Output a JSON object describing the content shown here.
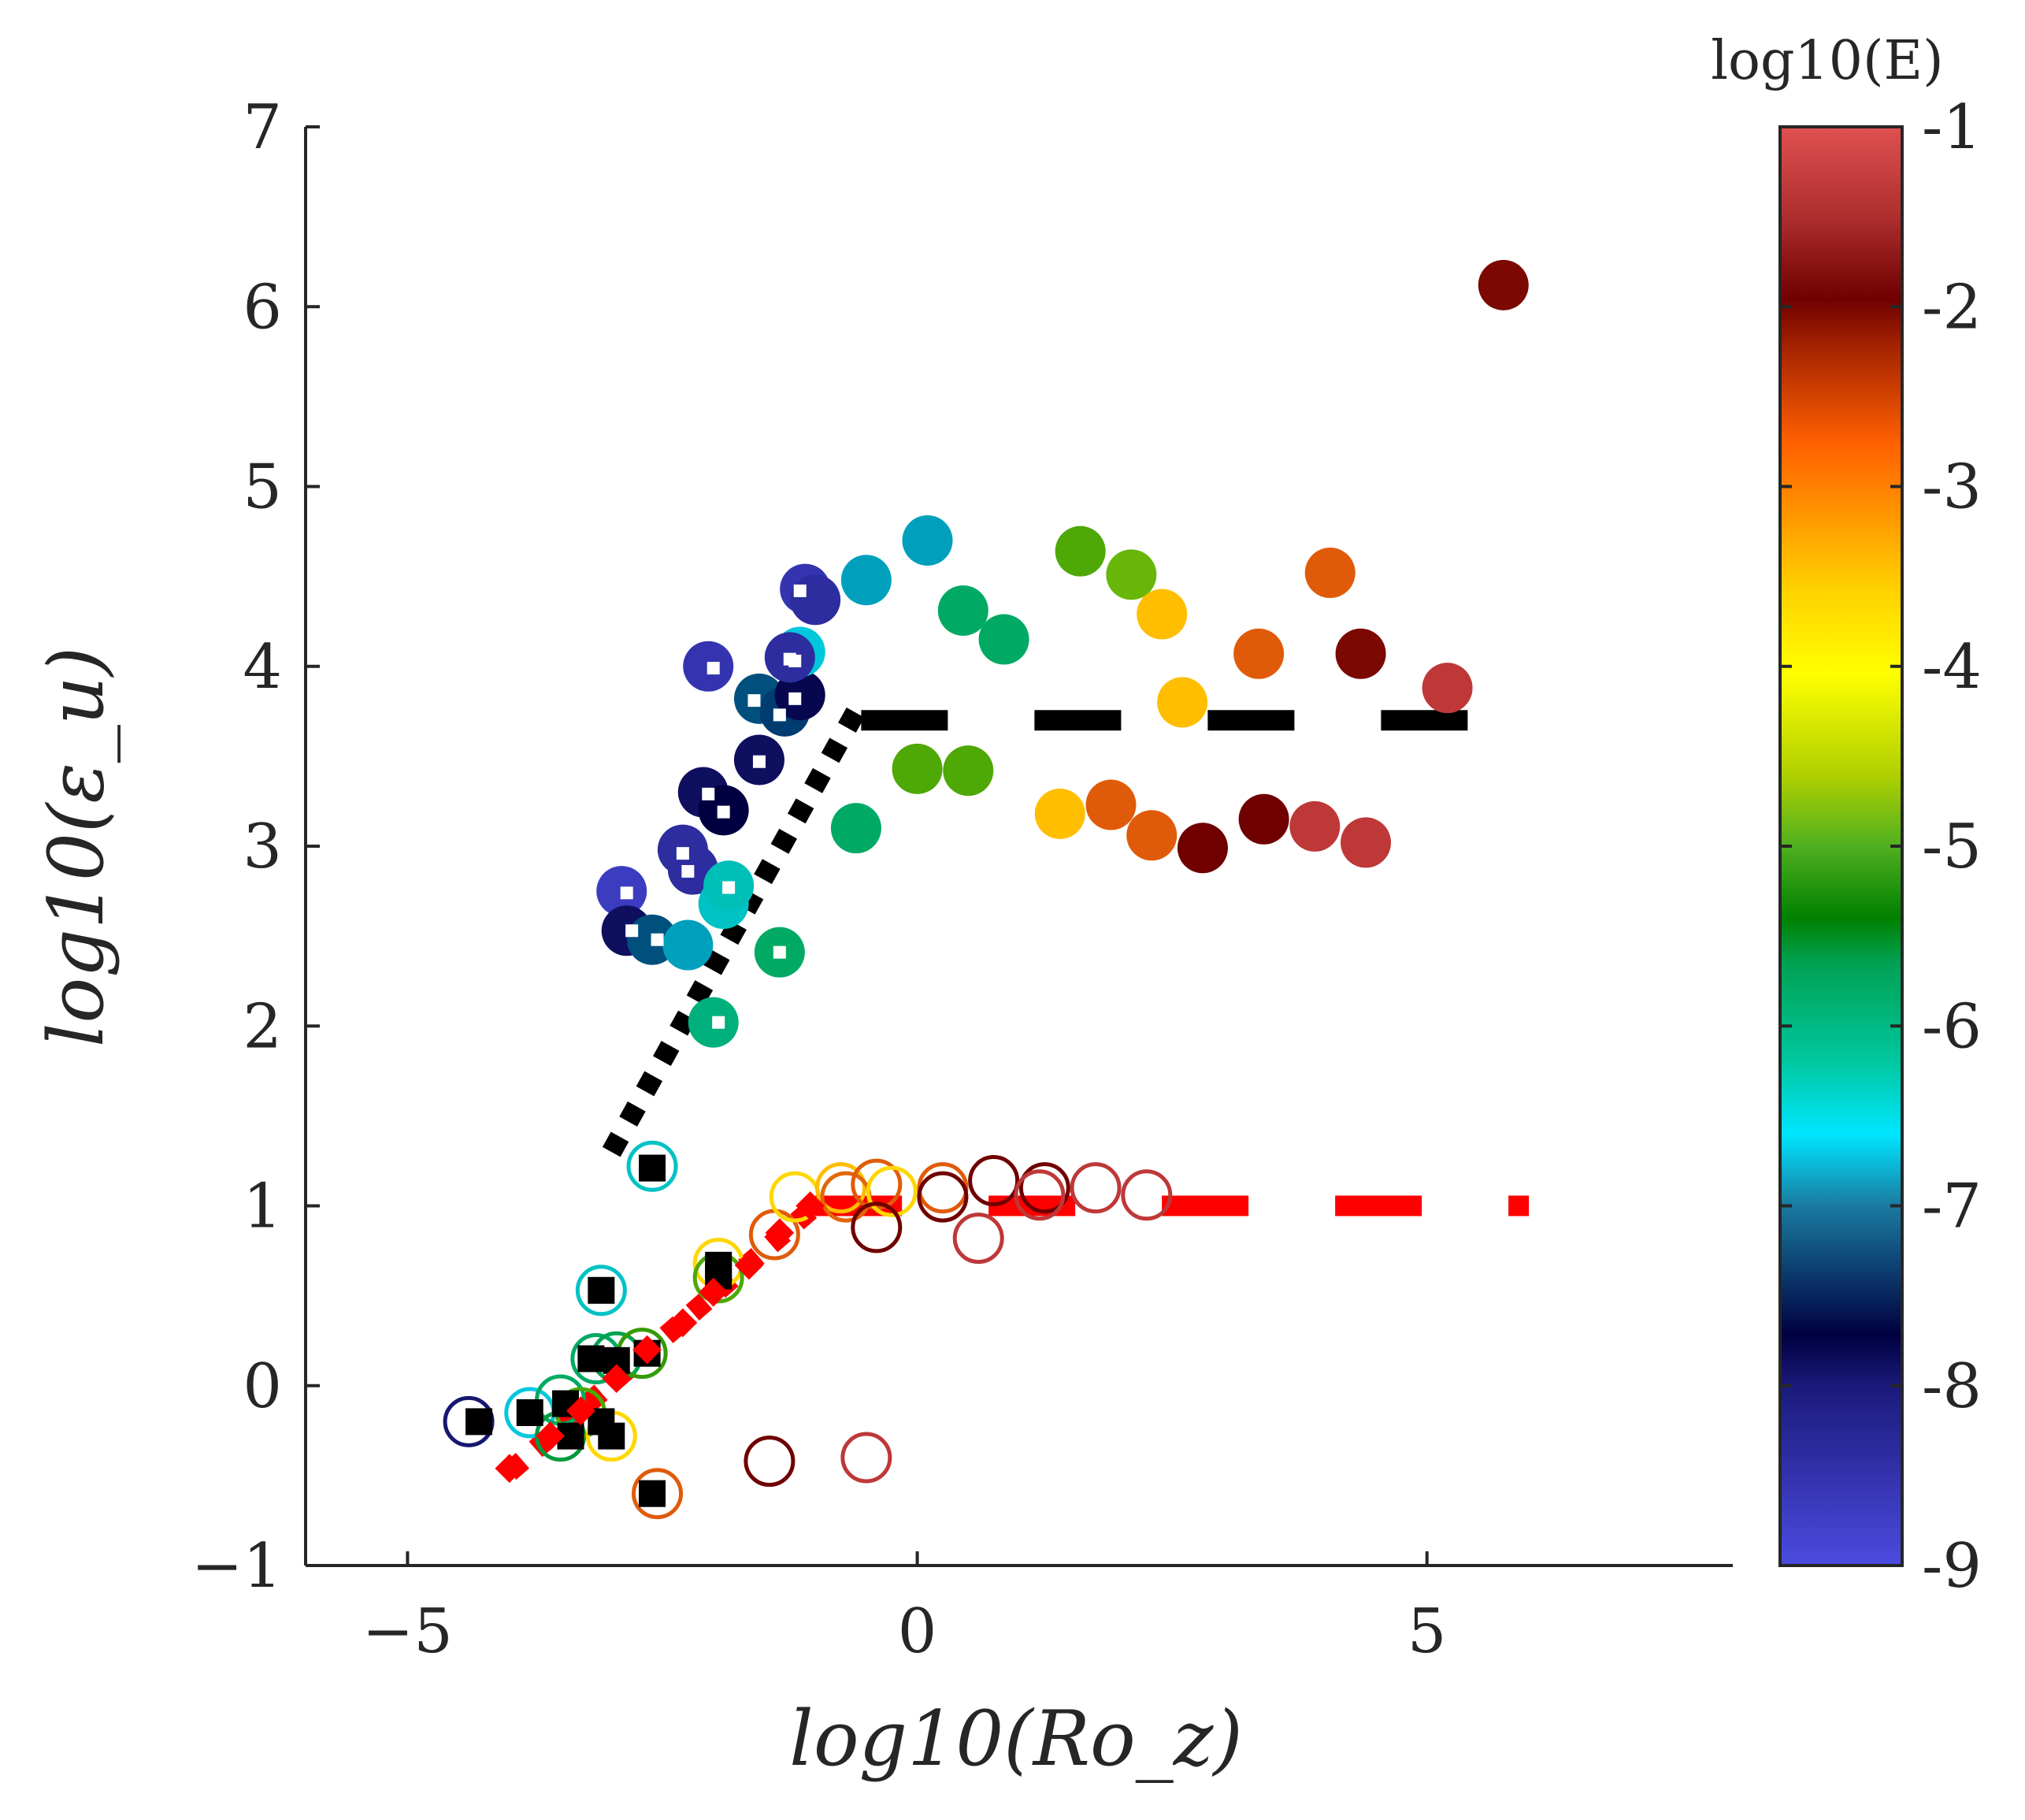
{
  "chart_data": {
    "type": "scatter",
    "xlabel": "log10(Ro_z)",
    "ylabel": "log10(ε_u)",
    "xlim": [
      -6,
      8
    ],
    "ylim": [
      -1,
      7
    ],
    "xticks": [
      -5,
      0,
      5
    ],
    "yticks": [
      -1,
      0,
      1,
      2,
      3,
      4,
      5,
      6,
      7
    ],
    "grid": false,
    "colorbar": {
      "title": "log10(E)",
      "range": [
        -9,
        -1
      ],
      "ticks": [
        "-1",
        "-2",
        "-3",
        "-4",
        "-5",
        "-6",
        "-7",
        "-8",
        "-9"
      ]
    },
    "series": [
      {
        "name": "filled circles (epsilon_u, upper branch)",
        "marker": "filled-circle",
        "points": [
          {
            "x": -2.9,
            "y": 2.75,
            "e": -8.8
          },
          {
            "x": -2.85,
            "y": 2.53,
            "e": -8.2
          },
          {
            "x": -2.6,
            "y": 2.48,
            "e": -7.6
          },
          {
            "x": -2.25,
            "y": 2.45,
            "e": -7.2
          },
          {
            "x": -2.3,
            "y": 2.98,
            "e": -8.6
          },
          {
            "x": -2.2,
            "y": 2.87,
            "e": -8.6
          },
          {
            "x": -2.0,
            "y": 2.02,
            "e": -6.2
          },
          {
            "x": -1.9,
            "y": 2.68,
            "e": -6.8
          },
          {
            "x": -1.85,
            "y": 2.78,
            "e": -6.7
          },
          {
            "x": -2.1,
            "y": 3.3,
            "e": -8.2
          },
          {
            "x": -1.9,
            "y": 3.2,
            "e": -8.0
          },
          {
            "x": -2.05,
            "y": 4.0,
            "e": -8.7
          },
          {
            "x": -1.55,
            "y": 3.82,
            "e": -7.6
          },
          {
            "x": -1.3,
            "y": 3.75,
            "e": -7.7
          },
          {
            "x": -1.55,
            "y": 3.48,
            "e": -8.2
          },
          {
            "x": -1.15,
            "y": 3.84,
            "e": -8.1
          },
          {
            "x": -1.35,
            "y": 2.41,
            "e": -6.0
          },
          {
            "x": -1.15,
            "y": 4.08,
            "e": -7.0
          },
          {
            "x": -1.25,
            "y": 4.05,
            "e": -8.6
          },
          {
            "x": -1.1,
            "y": 4.43,
            "e": -8.7
          },
          {
            "x": -1.0,
            "y": 4.37,
            "e": -8.6
          },
          {
            "x": -0.5,
            "y": 4.48,
            "e": -7.2
          },
          {
            "x": -0.6,
            "y": 3.1,
            "e": -6.0
          },
          {
            "x": 0.1,
            "y": 4.7,
            "e": -7.2
          },
          {
            "x": 0.45,
            "y": 4.31,
            "e": -6.0
          },
          {
            "x": 0.85,
            "y": 4.15,
            "e": -6.0
          },
          {
            "x": 0.0,
            "y": 3.43,
            "e": -5.2
          },
          {
            "x": 0.5,
            "y": 3.42,
            "e": -5.2
          },
          {
            "x": 1.6,
            "y": 4.64,
            "e": -5.2
          },
          {
            "x": 2.1,
            "y": 4.51,
            "e": -5.1
          },
          {
            "x": 2.4,
            "y": 4.29,
            "e": -4.0
          },
          {
            "x": 2.6,
            "y": 3.8,
            "e": -4.0
          },
          {
            "x": 1.4,
            "y": 3.18,
            "e": -4.0
          },
          {
            "x": 1.9,
            "y": 3.23,
            "e": -3.1
          },
          {
            "x": 2.3,
            "y": 3.06,
            "e": -3.1
          },
          {
            "x": 2.8,
            "y": 2.99,
            "e": -2.0
          },
          {
            "x": 3.35,
            "y": 4.07,
            "e": -3.1
          },
          {
            "x": 3.4,
            "y": 3.15,
            "e": -2.0
          },
          {
            "x": 3.9,
            "y": 3.11,
            "e": -1.3
          },
          {
            "x": 4.05,
            "y": 4.52,
            "e": -3.1
          },
          {
            "x": 4.35,
            "y": 4.07,
            "e": -2.1
          },
          {
            "x": 4.4,
            "y": 3.02,
            "e": -1.3
          },
          {
            "x": 5.2,
            "y": 3.88,
            "e": -1.3
          },
          {
            "x": 5.75,
            "y": 6.12,
            "e": -2.1
          }
        ]
      },
      {
        "name": "white squares (inside filled circles)",
        "marker": "white-square",
        "points": [
          {
            "x": -2.85,
            "y": 2.74
          },
          {
            "x": -2.8,
            "y": 2.53
          },
          {
            "x": -2.55,
            "y": 2.48
          },
          {
            "x": -2.3,
            "y": 2.96
          },
          {
            "x": -2.25,
            "y": 2.86
          },
          {
            "x": -1.95,
            "y": 2.02
          },
          {
            "x": -1.85,
            "y": 2.77
          },
          {
            "x": -2.05,
            "y": 3.29
          },
          {
            "x": -1.9,
            "y": 3.19
          },
          {
            "x": -2.0,
            "y": 3.99
          },
          {
            "x": -1.6,
            "y": 3.81
          },
          {
            "x": -1.35,
            "y": 3.73
          },
          {
            "x": -1.55,
            "y": 3.47
          },
          {
            "x": -1.2,
            "y": 3.82
          },
          {
            "x": -1.35,
            "y": 2.41
          },
          {
            "x": -1.25,
            "y": 4.04
          },
          {
            "x": -1.2,
            "y": 4.03
          },
          {
            "x": -1.15,
            "y": 4.42
          }
        ]
      },
      {
        "name": "open circles (lower branch)",
        "marker": "open-circle",
        "points": [
          {
            "x": -4.4,
            "y": -0.2,
            "e": -8.3
          },
          {
            "x": -3.8,
            "y": -0.15,
            "e": -7.0
          },
          {
            "x": -3.5,
            "y": -0.08,
            "e": -6.0
          },
          {
            "x": -3.5,
            "y": -0.28,
            "e": -5.8
          },
          {
            "x": -3.3,
            "y": -0.15,
            "e": -5.2
          },
          {
            "x": -3.0,
            "y": -0.28,
            "e": -4.2
          },
          {
            "x": -3.1,
            "y": 0.53,
            "e": -6.8
          },
          {
            "x": -3.15,
            "y": 0.15,
            "e": -6.0
          },
          {
            "x": -2.95,
            "y": 0.16,
            "e": -5.9
          },
          {
            "x": -2.7,
            "y": 0.18,
            "e": -5.3
          },
          {
            "x": -2.6,
            "y": 1.22,
            "e": -6.8
          },
          {
            "x": -2.55,
            "y": -0.6,
            "e": -3.1
          },
          {
            "x": -1.95,
            "y": 0.68,
            "e": -4.2
          },
          {
            "x": -1.95,
            "y": 0.6,
            "e": -5.2
          },
          {
            "x": -1.4,
            "y": 0.84,
            "e": -3.1
          },
          {
            "x": -1.2,
            "y": 1.05,
            "e": -4.2
          },
          {
            "x": -0.75,
            "y": 1.1,
            "e": -4.0
          },
          {
            "x": -0.7,
            "y": 1.05,
            "e": -3.2
          },
          {
            "x": -0.4,
            "y": 1.12,
            "e": -3.1
          },
          {
            "x": -0.25,
            "y": 1.08,
            "e": -4.2
          },
          {
            "x": -0.4,
            "y": 0.88,
            "e": -2.0
          },
          {
            "x": 0.25,
            "y": 1.1,
            "e": -3.1
          },
          {
            "x": 0.25,
            "y": 1.05,
            "e": -2.0
          },
          {
            "x": 0.6,
            "y": 0.82,
            "e": -1.3
          },
          {
            "x": 0.75,
            "y": 1.14,
            "e": -2.0
          },
          {
            "x": 1.25,
            "y": 1.1,
            "e": -2.0
          },
          {
            "x": 1.2,
            "y": 1.06,
            "e": -1.3
          },
          {
            "x": 1.75,
            "y": 1.1,
            "e": -1.3
          },
          {
            "x": 2.25,
            "y": 1.06,
            "e": -1.3
          },
          {
            "x": -1.45,
            "y": -0.42,
            "e": -2.0
          },
          {
            "x": -0.5,
            "y": -0.4,
            "e": -1.3
          }
        ]
      },
      {
        "name": "black squares",
        "marker": "black-square",
        "points": [
          {
            "x": -4.3,
            "y": -0.2
          },
          {
            "x": -3.8,
            "y": -0.15
          },
          {
            "x": -3.45,
            "y": -0.1
          },
          {
            "x": -3.4,
            "y": -0.28
          },
          {
            "x": -3.1,
            "y": -0.2
          },
          {
            "x": -3.0,
            "y": -0.28
          },
          {
            "x": -3.1,
            "y": 0.53
          },
          {
            "x": -3.2,
            "y": 0.15
          },
          {
            "x": -2.95,
            "y": 0.14
          },
          {
            "x": -2.65,
            "y": 0.18
          },
          {
            "x": -2.6,
            "y": 1.21
          },
          {
            "x": -2.6,
            "y": -0.6
          },
          {
            "x": -1.95,
            "y": 0.67
          },
          {
            "x": -1.95,
            "y": 0.61
          }
        ]
      },
      {
        "name": "red diamonds",
        "marker": "red-diamond",
        "points": [
          {
            "x": -4.0,
            "y": -0.46
          },
          {
            "x": -3.6,
            "y": -0.28
          },
          {
            "x": -3.3,
            "y": -0.14
          },
          {
            "x": -2.95,
            "y": 0.04
          },
          {
            "x": -2.65,
            "y": 0.2
          },
          {
            "x": -2.3,
            "y": 0.35
          },
          {
            "x": -2.0,
            "y": 0.52
          },
          {
            "x": -1.65,
            "y": 0.67
          },
          {
            "x": -1.35,
            "y": 0.85
          },
          {
            "x": -1.05,
            "y": 1.0
          }
        ]
      }
    ],
    "lines": [
      {
        "name": "black dotted slope",
        "style": "dotted",
        "color": "#000000",
        "x": [
          -3.0,
          -0.6
        ],
        "y": [
          1.3,
          3.75
        ]
      },
      {
        "name": "black dashed plateau",
        "style": "dashed",
        "color": "#000000",
        "x": [
          -0.55,
          5.5
        ],
        "y": [
          3.7,
          3.7
        ]
      },
      {
        "name": "red dotted slope",
        "style": "dotted",
        "color": "#ff0000",
        "x": [
          -4.0,
          -1.0
        ],
        "y": [
          -0.48,
          1.0
        ]
      },
      {
        "name": "red dashed plateau",
        "style": "dashed",
        "color": "#ff0000",
        "x": [
          -1.0,
          6.0
        ],
        "y": [
          1.0,
          1.0
        ]
      }
    ]
  }
}
